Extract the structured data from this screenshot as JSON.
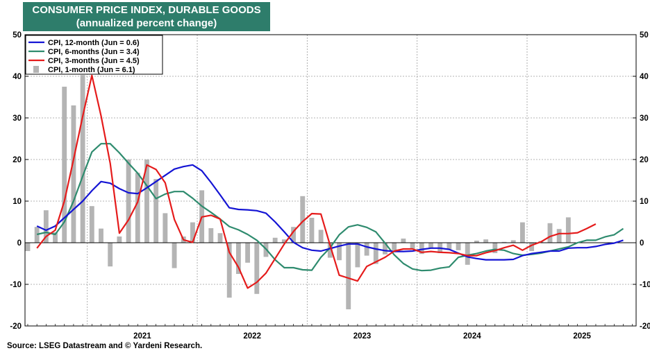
{
  "title": "CONSUMER PRICE INDEX, DURABLE GOODS",
  "subtitle": "(annualized percent change)",
  "source": "Source: LSEG Datastream and © Yardeni Research.",
  "colors": {
    "title_bg": "#2e7d6b",
    "cpi_12m": "#1414d4",
    "cpi_6m": "#2e8b6e",
    "cpi_3m": "#e51b1b",
    "cpi_1m": "#b4b4b4"
  },
  "chart_data": {
    "type": "line",
    "y_ticks": [
      "50",
      "40",
      "30",
      "20",
      "10",
      "0",
      "-10",
      "-20"
    ],
    "ylim": [
      -20,
      50
    ],
    "x_tick_labels": [
      "2021",
      "2022",
      "2023",
      "2024",
      "2025"
    ],
    "x_range": [
      "2020-06",
      "2025-12"
    ],
    "grid": true,
    "legend_position": "top-left",
    "legend": [
      "CPI, 12-month (Jun = 0.6)",
      "CPI, 6-months (Jun = 3.4)",
      "CPI, 3-months (Jun = 4.5)",
      "CPI, 1-month (Jun = 6.1)"
    ],
    "series": [
      {
        "name": "CPI, 12-month (Jun = 0.6)",
        "kind": "line",
        "start": "2020-07",
        "values": [
          4,
          3,
          4,
          6,
          8,
          10,
          12.5,
          14.7,
          14.3,
          13,
          12,
          11.8,
          13.2,
          14.7,
          16.2,
          17.7,
          18.3,
          18.7,
          17.3,
          14.5,
          11.5,
          8.4,
          8.0,
          7.9,
          7.7,
          7.1,
          5.0,
          2.6,
          0.1,
          -1.2,
          -1.8,
          -2.0,
          -1.4,
          -0.8,
          -0.3,
          -0.3,
          -1.0,
          -1.5,
          -1.9,
          -2.1,
          -2.1,
          -2.0,
          -1.6,
          -1.3,
          -1.3,
          -1.6,
          -2.5,
          -3.4,
          -3.8,
          -4.1,
          -4.1,
          -4.1,
          -4.0,
          -3.1,
          -2.6,
          -2.3,
          -2.0,
          -2.0,
          -1.3,
          -1.2,
          -1.2,
          -0.9,
          -0.4,
          -0.1,
          0.6
        ]
      },
      {
        "name": "CPI, 6-months (Jun = 3.4)",
        "kind": "line",
        "start": "2020-07",
        "values": [
          2,
          2.5,
          2.0,
          5,
          10,
          16,
          21.8,
          23.8,
          23.8,
          21.6,
          19.1,
          16.7,
          13.7,
          10.6,
          11.7,
          12.3,
          12.3,
          10.7,
          8.8,
          7.3,
          5.7,
          3.9,
          3.1,
          2.0,
          0.6,
          -1.5,
          -4.1,
          -6.0,
          -6.0,
          -6.5,
          -6.6,
          -3.5,
          -1.2,
          1.9,
          3.8,
          4.3,
          3.7,
          2.6,
          -0.1,
          -2.9,
          -5.0,
          -6.3,
          -6.7,
          -6.6,
          -6.1,
          -5.8,
          -3.5,
          -3.0,
          -2.6,
          -2.0,
          -1.6,
          -1.8,
          -2.6,
          -3.0,
          -2.8,
          -2.5,
          -2.0,
          -1.5,
          -1.0,
          0.0,
          0.6,
          0.6,
          1.4,
          1.9,
          3.4
        ]
      },
      {
        "name": "CPI, 3-months (Jun = 4.5)",
        "kind": "line",
        "start": "2020-07",
        "values": [
          -1.3,
          1.5,
          3.0,
          10,
          20,
          30.4,
          40.2,
          30.5,
          19.1,
          2.3,
          5.5,
          9.8,
          18.7,
          17.6,
          14.4,
          5.6,
          0.7,
          0.1,
          6.2,
          6.6,
          5.7,
          -2.3,
          -5.9,
          -10.9,
          -9.5,
          -7.3,
          -3.8,
          -0.3,
          2.7,
          5.1,
          7.0,
          6.9,
          -0.6,
          -7.8,
          -8.5,
          -9.2,
          -5.7,
          -4.6,
          -3.5,
          -2.0,
          -1.5,
          -1.5,
          -2.3,
          -2.1,
          -2.3,
          -2.4,
          -2.6,
          -3.1,
          -3.1,
          -2.4,
          -1.9,
          -1.2,
          -0.6,
          -1.8,
          -0.6,
          0.2,
          1.5,
          2.2,
          2.2,
          2.4,
          3.4,
          4.5
        ]
      },
      {
        "name": "CPI, 1-month (Jun = 6.1)",
        "kind": "bar",
        "start": "2020-06",
        "values": [
          -2.0,
          3.8,
          7.8,
          2.5,
          37.5,
          33.0,
          40.3,
          8.8,
          3.4,
          -5.7,
          1.5,
          20.0,
          16.8,
          20.0,
          15.3,
          7.1,
          -6.1,
          1.5,
          4.9,
          12.6,
          3.5,
          2.3,
          -13.2,
          -7.5,
          -4.8,
          -12.3,
          -3.4,
          1.2,
          0.8,
          3.8,
          11.2,
          6.0,
          3.1,
          -3.6,
          -4.2,
          -16.0,
          -5.9,
          -3.1,
          -5.1,
          -2.8,
          -1.8,
          1.0,
          -1.6,
          -2.7,
          -1.2,
          -2.5,
          -1.6,
          -1.8,
          -5.3,
          0.5,
          0.8,
          -2.5,
          0.2,
          0.6,
          4.9,
          -2.0,
          0.4,
          4.7,
          3.3,
          6.1
        ]
      }
    ]
  }
}
